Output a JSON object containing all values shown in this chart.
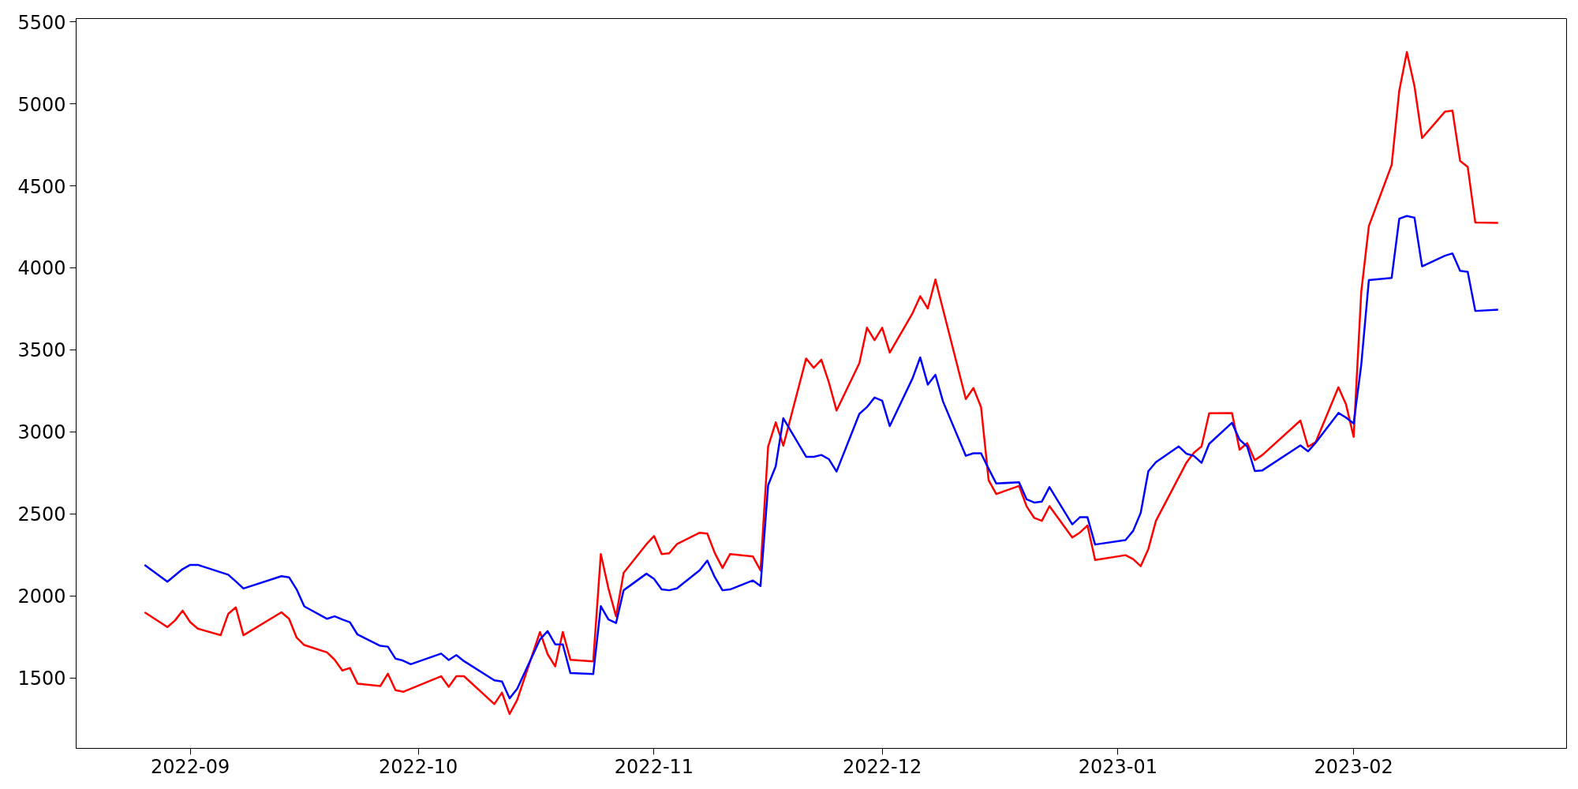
{
  "chart_data": {
    "type": "line",
    "xlim": [
      "2022-08-17",
      "2023-03-01"
    ],
    "xticks": [
      "2022-09",
      "2022-10",
      "2022-11",
      "2022-12",
      "2023-01",
      "2023-02"
    ],
    "ylim": [
      1070,
      5520
    ],
    "yticks": [
      1500,
      2000,
      2500,
      3000,
      3500,
      4000,
      4500,
      5000,
      5500
    ],
    "grid": false,
    "series": [
      {
        "color": "#ff0000",
        "x": [
          "2022-08-26",
          "2022-08-29",
          "2022-08-30",
          "2022-08-31",
          "2022-09-01",
          "2022-09-02",
          "2022-09-05",
          "2022-09-06",
          "2022-09-07",
          "2022-09-08",
          "2022-09-13",
          "2022-09-14",
          "2022-09-15",
          "2022-09-16",
          "2022-09-19",
          "2022-09-20",
          "2022-09-21",
          "2022-09-22",
          "2022-09-23",
          "2022-09-26",
          "2022-09-27",
          "2022-09-28",
          "2022-09-29",
          "2022-10-04",
          "2022-10-05",
          "2022-10-06",
          "2022-10-07",
          "2022-10-11",
          "2022-10-12",
          "2022-10-13",
          "2022-10-14",
          "2022-10-17",
          "2022-10-18",
          "2022-10-19",
          "2022-10-20",
          "2022-10-21",
          "2022-10-24",
          "2022-10-25",
          "2022-10-26",
          "2022-10-27",
          "2022-10-28",
          "2022-10-31",
          "2022-11-01",
          "2022-11-02",
          "2022-11-03",
          "2022-11-04",
          "2022-11-07",
          "2022-11-08",
          "2022-11-09",
          "2022-11-10",
          "2022-11-11",
          "2022-11-14",
          "2022-11-15",
          "2022-11-16",
          "2022-11-17",
          "2022-11-18",
          "2022-11-21",
          "2022-11-22",
          "2022-11-23",
          "2022-11-24",
          "2022-11-25",
          "2022-11-28",
          "2022-11-29",
          "2022-11-30",
          "2022-12-01",
          "2022-12-02",
          "2022-12-05",
          "2022-12-06",
          "2022-12-07",
          "2022-12-08",
          "2022-12-12",
          "2022-12-13",
          "2022-12-14",
          "2022-12-15",
          "2022-12-16",
          "2022-12-19",
          "2022-12-20",
          "2022-12-21",
          "2022-12-22",
          "2022-12-23",
          "2022-12-26",
          "2022-12-27",
          "2022-12-28",
          "2022-12-29",
          "2023-01-02",
          "2023-01-03",
          "2023-01-04",
          "2023-01-05",
          "2023-01-06",
          "2023-01-10",
          "2023-01-11",
          "2023-01-12",
          "2023-01-13",
          "2023-01-16",
          "2023-01-17",
          "2023-01-18",
          "2023-01-19",
          "2023-01-20",
          "2023-01-25",
          "2023-01-26",
          "2023-01-27",
          "2023-01-30",
          "2023-01-31",
          "2023-02-01",
          "2023-02-02",
          "2023-02-03",
          "2023-02-06",
          "2023-02-07",
          "2023-02-08",
          "2023-02-09",
          "2023-02-10",
          "2023-02-13",
          "2023-02-14",
          "2023-02-15",
          "2023-02-16",
          "2023-02-17",
          "2023-02-20"
        ],
        "values": [
          1900,
          1810,
          1850,
          1910,
          1840,
          1800,
          1760,
          1890,
          1930,
          1760,
          1900,
          1860,
          1745,
          1700,
          1655,
          1610,
          1545,
          1560,
          1465,
          1450,
          1525,
          1425,
          1415,
          1510,
          1445,
          1510,
          1510,
          1340,
          1410,
          1280,
          1365,
          1780,
          1645,
          1570,
          1780,
          1610,
          1600,
          2255,
          2045,
          1875,
          2140,
          2315,
          2365,
          2255,
          2260,
          2315,
          2385,
          2380,
          2260,
          2170,
          2255,
          2240,
          2155,
          2910,
          3058,
          2915,
          3447,
          3390,
          3440,
          3300,
          3130,
          3419,
          3635,
          3559,
          3635,
          3483,
          3724,
          3827,
          3752,
          3929,
          3200,
          3267,
          3151,
          2705,
          2621,
          2670,
          2545,
          2475,
          2457,
          2547,
          2356,
          2386,
          2429,
          2219,
          2248,
          2224,
          2181,
          2285,
          2457,
          2811,
          2873,
          2911,
          3113,
          3115,
          2891,
          2931,
          2827,
          2859,
          3069,
          2909,
          2937,
          3272,
          3167,
          2969,
          3853,
          4254,
          4627,
          5080,
          5316,
          5107,
          4791,
          4952,
          4958,
          4652,
          4616,
          4276,
          4274
        ]
      },
      {
        "color": "#0000ff",
        "x": [
          "2022-08-26",
          "2022-08-29",
          "2022-08-31",
          "2022-09-01",
          "2022-09-02",
          "2022-09-06",
          "2022-09-07",
          "2022-09-08",
          "2022-09-13",
          "2022-09-14",
          "2022-09-15",
          "2022-09-16",
          "2022-09-19",
          "2022-09-20",
          "2022-09-21",
          "2022-09-22",
          "2022-09-23",
          "2022-09-26",
          "2022-09-27",
          "2022-09-28",
          "2022-09-29",
          "2022-09-30",
          "2022-10-04",
          "2022-10-05",
          "2022-10-06",
          "2022-10-07",
          "2022-10-11",
          "2022-10-12",
          "2022-10-13",
          "2022-10-14",
          "2022-10-17",
          "2022-10-18",
          "2022-10-19",
          "2022-10-20",
          "2022-10-21",
          "2022-10-24",
          "2022-10-25",
          "2022-10-26",
          "2022-10-27",
          "2022-10-28",
          "2022-10-31",
          "2022-11-01",
          "2022-11-02",
          "2022-11-03",
          "2022-11-04",
          "2022-11-07",
          "2022-11-08",
          "2022-11-09",
          "2022-11-10",
          "2022-11-11",
          "2022-11-14",
          "2022-11-15",
          "2022-11-16",
          "2022-11-17",
          "2022-11-18",
          "2022-11-21",
          "2022-11-22",
          "2022-11-23",
          "2022-11-24",
          "2022-11-25",
          "2022-11-28",
          "2022-11-29",
          "2022-11-30",
          "2022-12-01",
          "2022-12-02",
          "2022-12-05",
          "2022-12-06",
          "2022-12-07",
          "2022-12-08",
          "2022-12-09",
          "2022-12-12",
          "2022-12-13",
          "2022-12-14",
          "2022-12-15",
          "2022-12-16",
          "2022-12-19",
          "2022-12-20",
          "2022-12-21",
          "2022-12-22",
          "2022-12-23",
          "2022-12-26",
          "2022-12-27",
          "2022-12-28",
          "2022-12-29",
          "2023-01-02",
          "2023-01-03",
          "2023-01-04",
          "2023-01-05",
          "2023-01-06",
          "2023-01-09",
          "2023-01-10",
          "2023-01-11",
          "2023-01-12",
          "2023-01-13",
          "2023-01-16",
          "2023-01-17",
          "2023-01-18",
          "2023-01-19",
          "2023-01-20",
          "2023-01-25",
          "2023-01-26",
          "2023-01-27",
          "2023-01-30",
          "2023-01-31",
          "2023-02-01",
          "2023-02-02",
          "2023-02-03",
          "2023-02-06",
          "2023-02-07",
          "2023-02-08",
          "2023-02-09",
          "2023-02-10",
          "2023-02-13",
          "2023-02-14",
          "2023-02-15",
          "2023-02-16",
          "2023-02-17",
          "2023-02-20"
        ],
        "values": [
          2189,
          2086,
          2163,
          2189,
          2189,
          2129,
          2088,
          2045,
          2120,
          2113,
          2039,
          1936,
          1860,
          1875,
          1856,
          1839,
          1764,
          1695,
          1690,
          1617,
          1605,
          1583,
          1648,
          1609,
          1639,
          1602,
          1485,
          1478,
          1375,
          1433,
          1734,
          1785,
          1704,
          1704,
          1529,
          1523,
          1937,
          1856,
          1834,
          2034,
          2135,
          2103,
          2039,
          2034,
          2045,
          2156,
          2215,
          2113,
          2034,
          2039,
          2094,
          2060,
          2674,
          2790,
          3083,
          2848,
          2848,
          2859,
          2833,
          2758,
          3110,
          3151,
          3209,
          3190,
          3035,
          3327,
          3454,
          3288,
          3348,
          3185,
          2854,
          2869,
          2869,
          2775,
          2685,
          2693,
          2588,
          2569,
          2575,
          2663,
          2436,
          2479,
          2479,
          2313,
          2340,
          2396,
          2506,
          2760,
          2815,
          2911,
          2867,
          2853,
          2811,
          2927,
          3055,
          2952,
          2911,
          2761,
          2765,
          2917,
          2881,
          2933,
          3115,
          3087,
          3051,
          3408,
          3925,
          3939,
          4300,
          4316,
          4306,
          4009,
          4074,
          4088,
          3982,
          3976,
          3737,
          3745
        ]
      }
    ]
  }
}
